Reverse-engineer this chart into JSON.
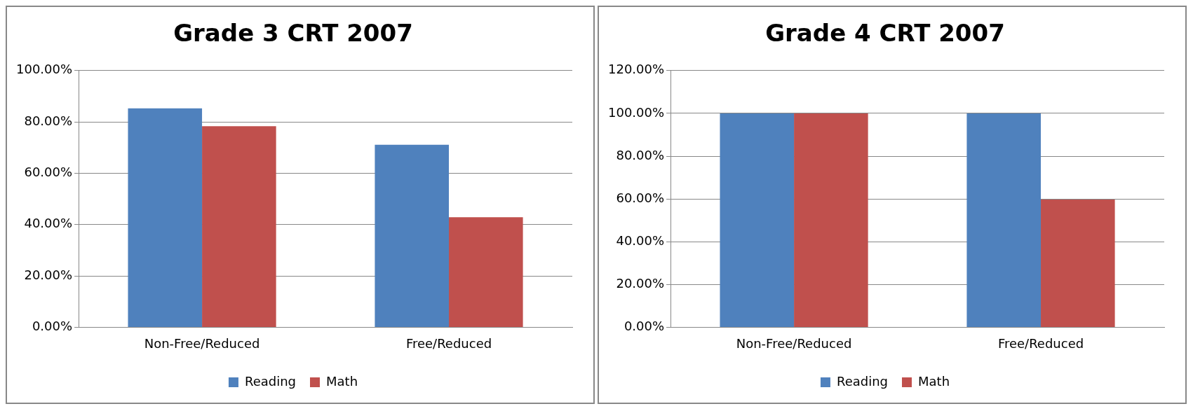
{
  "chart_data": [
    {
      "type": "bar",
      "title": "Grade 3 CRT 2007",
      "categories": [
        "Non-Free/Reduced",
        "Free/Reduced"
      ],
      "series": [
        {
          "name": "Reading",
          "color": "#4f81bd",
          "values": [
            85.3,
            71.1
          ]
        },
        {
          "name": "Math",
          "color": "#c0504d",
          "values": [
            78.3,
            42.9
          ]
        }
      ],
      "ylim": [
        0,
        100
      ],
      "yticks": [
        {
          "value": 0,
          "label": "0.00%"
        },
        {
          "value": 20,
          "label": "20.00%"
        },
        {
          "value": 40,
          "label": "40.00%"
        },
        {
          "value": 60,
          "label": "60.00%"
        },
        {
          "value": 80,
          "label": "80.00%"
        },
        {
          "value": 100,
          "label": "100.00%"
        }
      ],
      "grid": "y",
      "legend": "bottom"
    },
    {
      "type": "bar",
      "title": "Grade 4 CRT 2007",
      "categories": [
        "Non-Free/Reduced",
        "Free/Reduced"
      ],
      "series": [
        {
          "name": "Reading",
          "color": "#4f81bd",
          "values": [
            100,
            100
          ]
        },
        {
          "name": "Math",
          "color": "#c0504d",
          "values": [
            100,
            59.7
          ]
        }
      ],
      "ylim": [
        0,
        120
      ],
      "yticks": [
        {
          "value": 0,
          "label": "0.00%"
        },
        {
          "value": 20,
          "label": "20.00%"
        },
        {
          "value": 40,
          "label": "40.00%"
        },
        {
          "value": 60,
          "label": "60.00%"
        },
        {
          "value": 80,
          "label": "80.00%"
        },
        {
          "value": 100,
          "label": "100.00%"
        },
        {
          "value": 120,
          "label": "120.00%"
        }
      ],
      "grid": "y",
      "legend": "bottom"
    }
  ]
}
